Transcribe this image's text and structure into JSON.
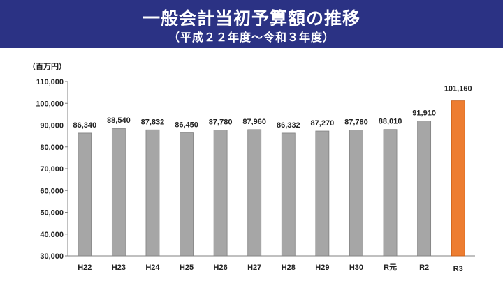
{
  "header": {
    "title": "一般会計当初予算額の推移",
    "subtitle": "（平成２２年度～令和３年度）"
  },
  "colors": {
    "header_bg": "#2b3284",
    "bar_default": "#a6a6a6",
    "bar_highlight": "#ed7d31"
  },
  "chart_data": {
    "type": "bar",
    "unit_label": "（百万円）",
    "categories": [
      "H22",
      "H23",
      "H24",
      "H25",
      "H26",
      "H27",
      "H28",
      "H29",
      "H30",
      "R元",
      "R2",
      "R3"
    ],
    "values": [
      86340,
      88540,
      87832,
      86450,
      87780,
      87960,
      86332,
      87270,
      87780,
      88010,
      91910,
      101160
    ],
    "value_labels": [
      "86,340",
      "88,540",
      "87,832",
      "86,450",
      "87,780",
      "87,960",
      "86,332",
      "87,270",
      "87,780",
      "88,010",
      "91,910",
      "101,160"
    ],
    "highlight_index": 11,
    "ylim": [
      30000,
      110000
    ],
    "yticks": [
      30000,
      40000,
      50000,
      60000,
      70000,
      80000,
      90000,
      100000,
      110000
    ],
    "ytick_labels": [
      "30,000",
      "40,000",
      "50,000",
      "60,000",
      "70,000",
      "80,000",
      "90,000",
      "100,000",
      "110,000"
    ],
    "grid": false,
    "legend": "none"
  }
}
